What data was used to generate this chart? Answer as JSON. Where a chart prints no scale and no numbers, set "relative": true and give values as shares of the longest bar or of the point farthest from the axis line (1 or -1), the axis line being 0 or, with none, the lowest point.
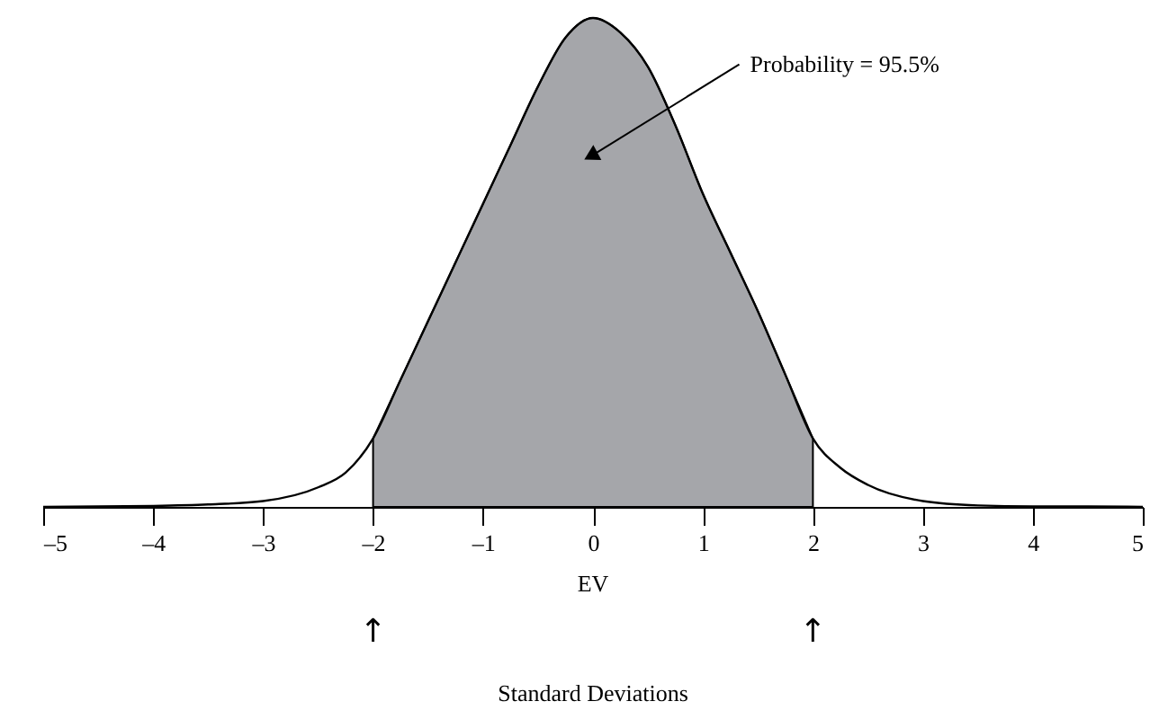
{
  "chart_data": {
    "type": "line",
    "relative": true,
    "xlim": [
      -5,
      5
    ],
    "xticks": [
      {
        "value": -5,
        "label": "–5"
      },
      {
        "value": -4,
        "label": "–4"
      },
      {
        "value": -3,
        "label": "–3"
      },
      {
        "value": -2,
        "label": "–2"
      },
      {
        "value": -1,
        "label": "–1"
      },
      0,
      1,
      2,
      3,
      4,
      5
    ],
    "grid": false,
    "marker": "none",
    "line_style": "solid",
    "series": [
      {
        "type": "area",
        "color": "#a5a6aa",
        "x": [
          -2,
          -1.75,
          -1.5,
          -1.25,
          -1,
          -0.75,
          -0.5,
          -0.25,
          0,
          0.25,
          0.5,
          0.75,
          1,
          1.25,
          1.5,
          1.75,
          2
        ],
        "values": [
          0.14,
          0.26,
          0.38,
          0.5,
          0.62,
          0.74,
          0.86,
          0.96,
          1,
          0.97,
          0.9,
          0.78,
          0.64,
          0.52,
          0.4,
          0.27,
          0.14
        ]
      },
      {
        "color": "#000000",
        "x": [
          -5,
          -4.5,
          -4,
          -3.5,
          -3,
          -2.5,
          -2.25,
          -2,
          -1.75,
          -1.5,
          -1.25,
          -1,
          -0.75,
          -0.5,
          -0.25,
          0,
          0.25,
          0.5,
          0.75,
          1,
          1.25,
          1.5,
          1.75,
          2,
          2.25,
          2.5,
          3,
          3.5,
          4,
          4.5,
          5
        ],
        "values": [
          0,
          0.001,
          0.002,
          0.005,
          0.012,
          0.04,
          0.07,
          0.14,
          0.26,
          0.38,
          0.5,
          0.62,
          0.74,
          0.86,
          0.96,
          1,
          0.97,
          0.9,
          0.78,
          0.64,
          0.52,
          0.4,
          0.27,
          0.14,
          0.08,
          0.045,
          0.012,
          0.003,
          0.001,
          0.001,
          0
        ]
      }
    ],
    "annotations": [
      {
        "text": "Probability = 95.5%",
        "x": 0,
        "y": 0.72
      },
      "EV",
      "↑",
      "↑",
      "Standard Deviations"
    ]
  }
}
